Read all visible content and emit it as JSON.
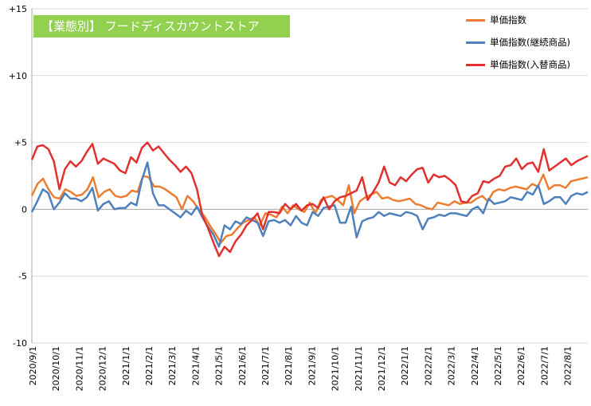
{
  "chart_data": {
    "type": "line",
    "title": "【業態別】 フードディスカウントストア",
    "ylim": [
      -10,
      15
    ],
    "yticks": [
      "+15",
      "+10",
      "+5",
      "0",
      "-5",
      "-10"
    ],
    "ytick_values": [
      15,
      10,
      5,
      0,
      -5,
      -10
    ],
    "x_tick_labels": [
      "2020/9/1",
      "2020/10/1",
      "2020/11/1",
      "2020/12/1",
      "2021/1/1",
      "2021/2/1",
      "2021/3/1",
      "2021/4/1",
      "2021/5/1",
      "2021/6/1",
      "2021/7/1",
      "2021/8/1",
      "2021/9/1",
      "2021/10/1",
      "2021/11/1",
      "2021/12/1",
      "2022/1/1",
      "2022/2/1",
      "2022/3/1",
      "2022/4/1",
      "2022/5/1",
      "2022/6/1",
      "2022/7/1",
      "2022/8/1"
    ],
    "grid": "horizontal",
    "legend_position": "top-right",
    "series": [
      {
        "name": "単価指数",
        "color": "#ed7d31",
        "values": [
          1.0,
          1.9,
          2.3,
          1.5,
          0.9,
          0.8,
          1.5,
          1.3,
          1.0,
          1.1,
          1.5,
          2.4,
          0.9,
          1.3,
          1.5,
          1.0,
          0.9,
          1.0,
          1.4,
          1.3,
          2.5,
          2.4,
          1.7,
          1.7,
          1.5,
          1.2,
          0.9,
          0.0,
          1.0,
          0.6,
          0.0,
          -0.5,
          -1.2,
          -1.8,
          -2.5,
          -2.0,
          -1.9,
          -1.4,
          -1.0,
          -0.8,
          -0.6,
          -1.2,
          -0.3,
          -0.4,
          -0.6,
          0.2,
          -0.3,
          0.3,
          0.0,
          -0.2,
          0.5,
          -0.3,
          0.7,
          0.9,
          1.0,
          0.7,
          0.3,
          1.8,
          -0.3,
          0.6,
          0.9,
          1.1,
          1.3,
          0.8,
          0.9,
          0.7,
          0.6,
          0.7,
          0.8,
          0.4,
          0.3,
          0.1,
          0.0,
          0.5,
          0.4,
          0.3,
          0.6,
          0.4,
          0.5,
          0.5,
          0.8,
          1.0,
          0.6,
          1.3,
          1.5,
          1.4,
          1.6,
          1.7,
          1.6,
          1.5,
          1.9,
          1.7,
          2.6,
          1.5,
          1.8,
          1.8,
          1.6,
          2.1,
          2.2,
          2.3,
          2.4
        ]
      },
      {
        "name": "単価指数(継続商品)",
        "color": "#4f81bd",
        "values": [
          -0.2,
          0.6,
          1.5,
          1.2,
          0.0,
          0.5,
          1.2,
          0.8,
          0.8,
          0.6,
          0.9,
          1.6,
          -0.1,
          0.4,
          0.6,
          0.0,
          0.1,
          0.1,
          0.5,
          0.3,
          2.2,
          3.5,
          1.2,
          0.3,
          0.3,
          0.0,
          -0.3,
          -0.6,
          -0.1,
          -0.4,
          0.2,
          -0.6,
          -1.3,
          -1.9,
          -2.8,
          -1.2,
          -1.5,
          -0.9,
          -1.1,
          -0.6,
          -0.8,
          -1.0,
          -2.0,
          -0.9,
          -0.8,
          -1.0,
          -0.8,
          -1.2,
          -0.5,
          -1.0,
          -1.2,
          -0.2,
          -0.5,
          0.1,
          0.2,
          0.3,
          -1.0,
          -1.0,
          0.2,
          -2.1,
          -0.9,
          -0.7,
          -0.6,
          -0.2,
          -0.5,
          -0.3,
          -0.4,
          -0.5,
          -0.2,
          -0.3,
          -0.5,
          -1.5,
          -0.7,
          -0.6,
          -0.4,
          -0.5,
          -0.3,
          -0.3,
          -0.4,
          -0.5,
          0.0,
          0.2,
          -0.3,
          0.8,
          0.4,
          0.5,
          0.6,
          0.9,
          0.8,
          0.7,
          1.3,
          1.1,
          1.8,
          0.4,
          0.6,
          0.9,
          0.9,
          0.4,
          1.0,
          1.2,
          1.1,
          1.3
        ]
      },
      {
        "name": "単価指数(入替商品)",
        "color": "#e0312f",
        "values": [
          3.7,
          4.7,
          4.8,
          4.5,
          3.6,
          1.5,
          3.0,
          3.6,
          3.2,
          3.6,
          4.3,
          4.9,
          3.4,
          3.8,
          3.6,
          3.4,
          2.9,
          2.7,
          3.9,
          3.5,
          4.6,
          5.0,
          4.4,
          4.7,
          4.2,
          3.7,
          3.3,
          2.8,
          3.2,
          2.7,
          1.5,
          -0.5,
          -1.4,
          -2.5,
          -3.5,
          -2.8,
          -3.2,
          -2.4,
          -1.9,
          -1.2,
          -0.8,
          -0.3,
          -1.5,
          -0.2,
          -0.2,
          -0.3,
          0.4,
          0.0,
          0.4,
          -0.1,
          0.3,
          0.4,
          0.1,
          0.9,
          0.0,
          0.6,
          0.9,
          1.0,
          1.2,
          1.4,
          2.4,
          0.7,
          1.3,
          2.0,
          3.2,
          2.0,
          1.8,
          2.4,
          2.1,
          2.6,
          3.0,
          3.1,
          2.0,
          2.6,
          2.4,
          2.5,
          2.2,
          1.8,
          0.6,
          0.5,
          1.0,
          1.2,
          2.1,
          2.0,
          2.3,
          2.5,
          3.2,
          3.3,
          3.8,
          3.0,
          3.4,
          3.5,
          2.8,
          4.5,
          2.9,
          3.2,
          3.5,
          3.8,
          3.3,
          3.6,
          3.8,
          4.0
        ]
      }
    ]
  }
}
